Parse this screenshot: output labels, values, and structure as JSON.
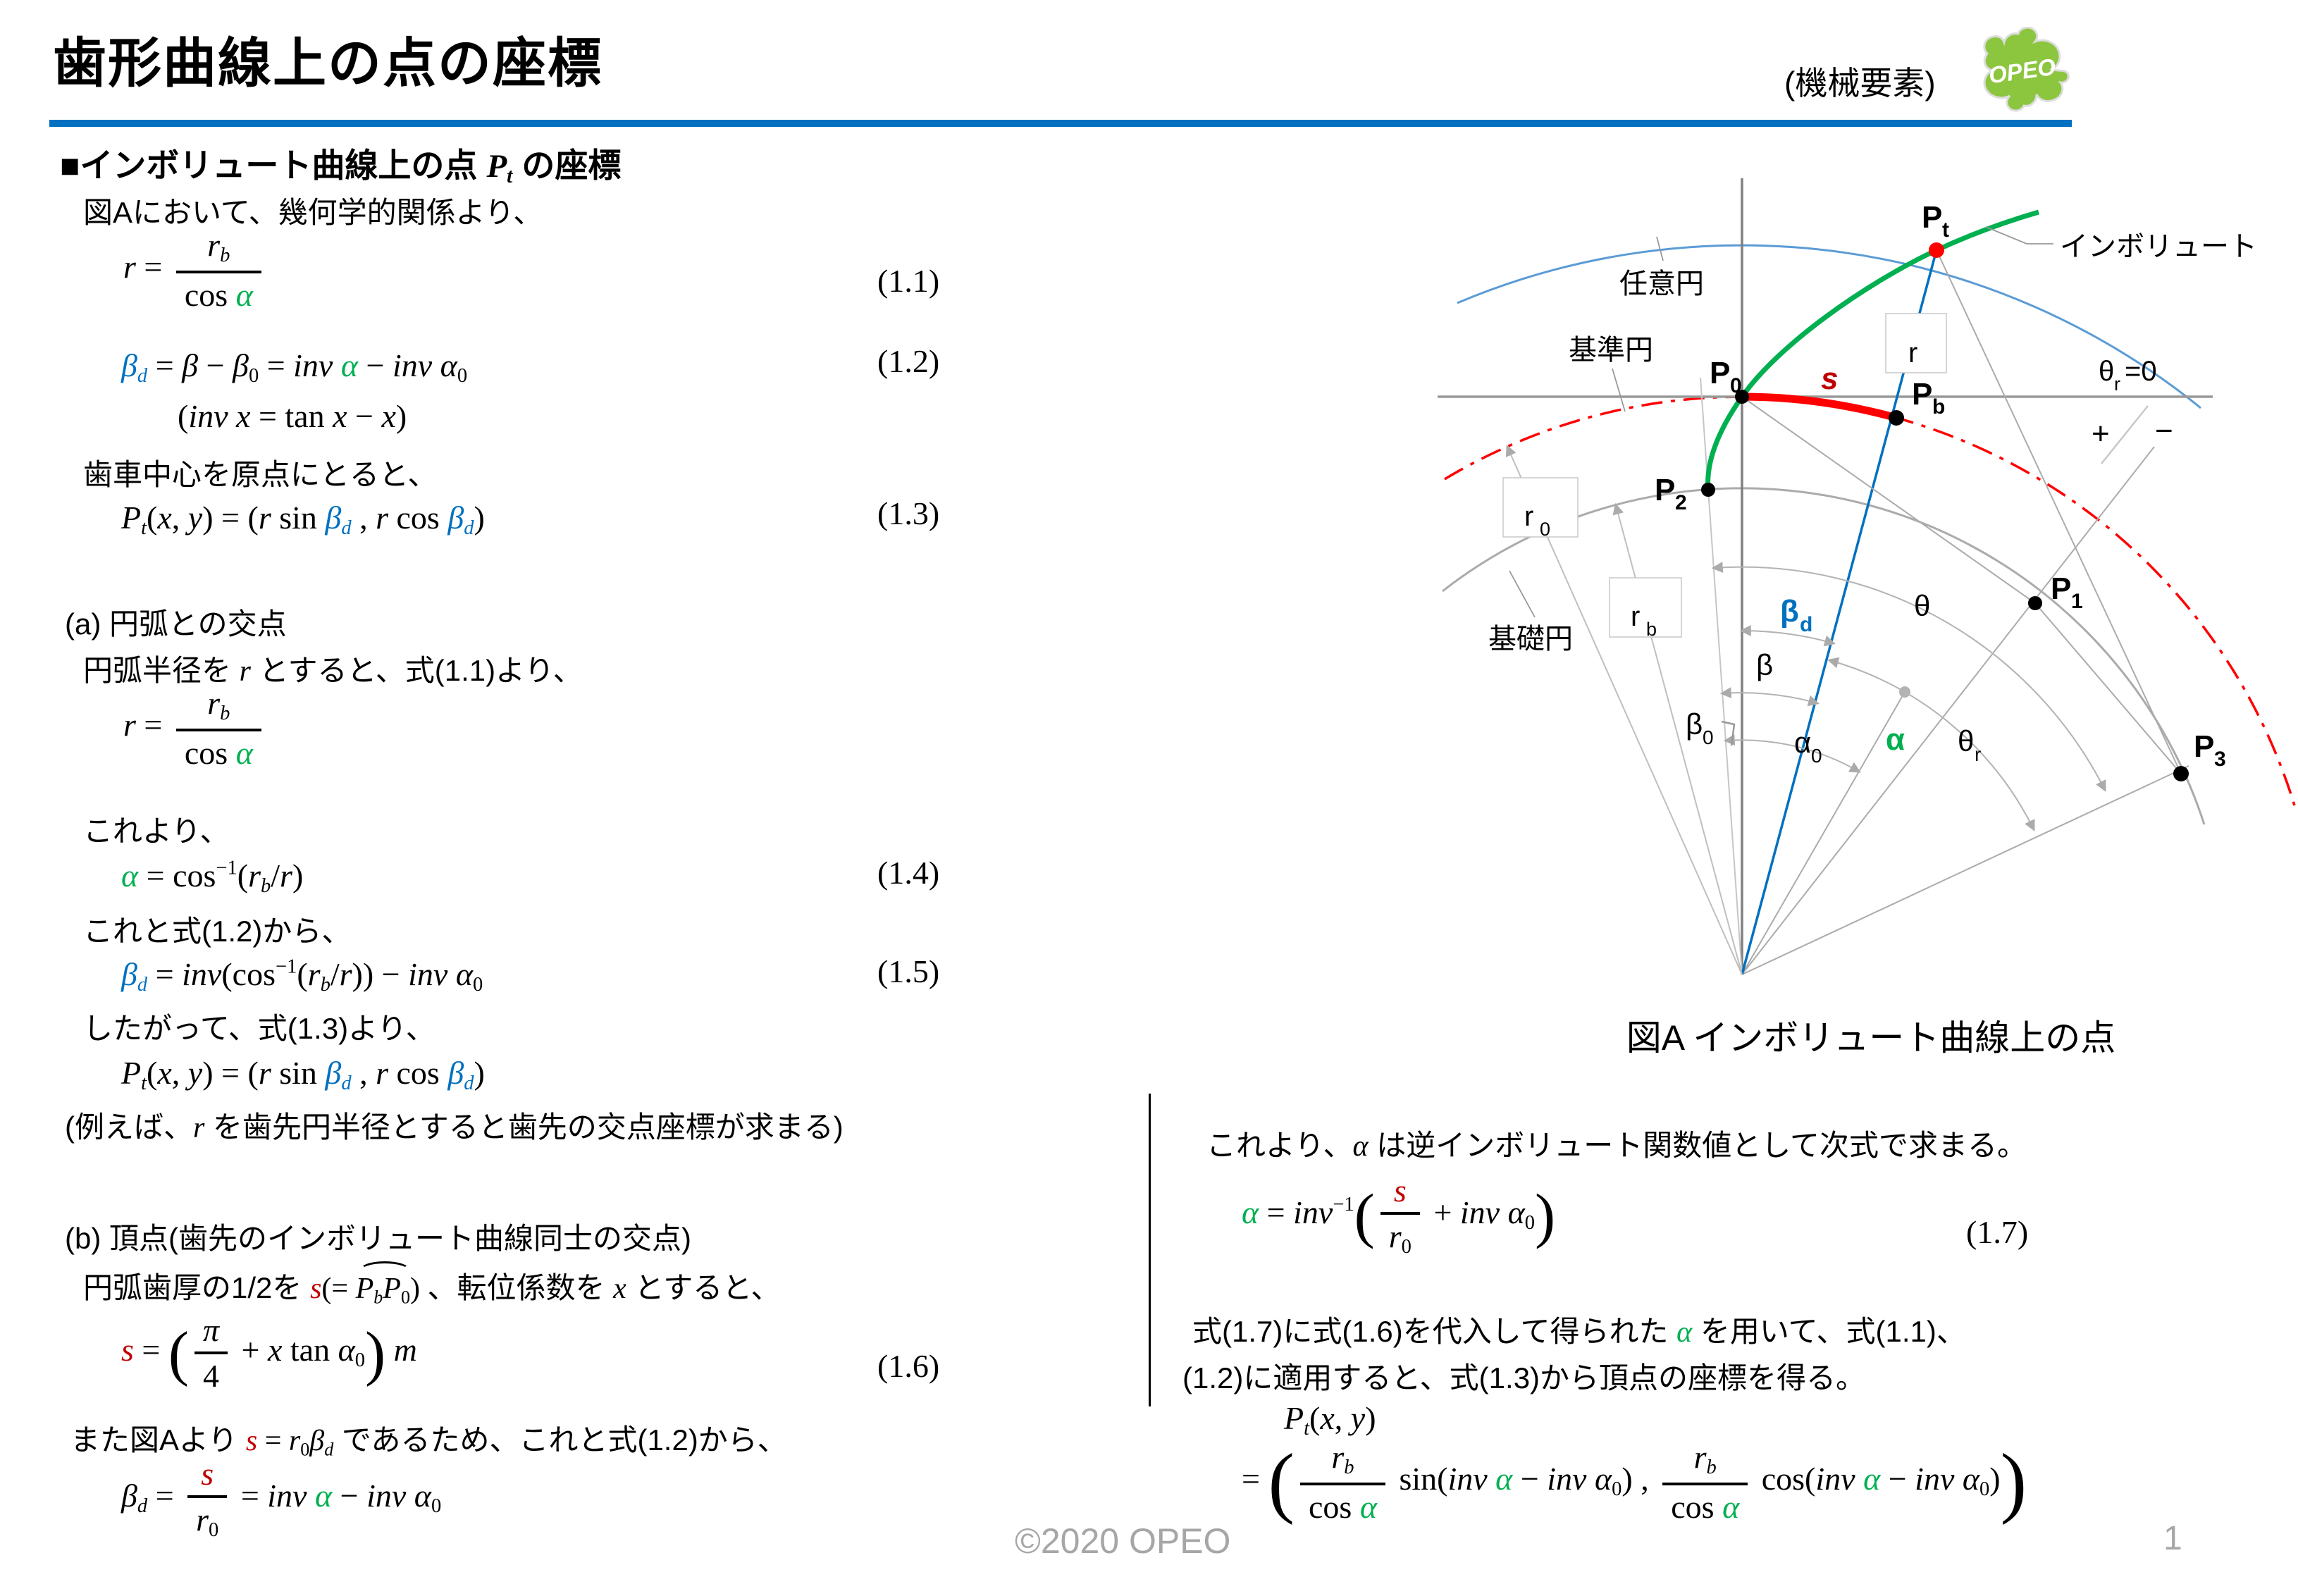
{
  "header": {
    "title": "歯形曲線上の点の座標",
    "category": "(機械要素)",
    "logo_text": "OPEO"
  },
  "footer": {
    "copyright": "©2020 OPEO",
    "page": "1"
  },
  "eqnums": {
    "e11": "(1.1)",
    "e12": "(1.2)",
    "e13": "(1.3)",
    "e14": "(1.4)",
    "e15": "(1.5)",
    "e16": "(1.6)",
    "e17": "(1.7)"
  },
  "colors": {
    "green": "#00B050",
    "blue": "#0070C0",
    "dark_red": "#C00000",
    "bright_red": "#FF0000",
    "light_blue": "#5B9BD5",
    "gray": "#A6A6A6"
  },
  "lines": {
    "heading": [
      {
        "t": "■インボリュート曲線上の点 ",
        "c": "jp"
      },
      {
        "t": "P",
        "c": "i"
      },
      {
        "t": "t",
        "c": "sub"
      },
      {
        "t": " の座標",
        "c": "jp"
      }
    ],
    "intro": [
      {
        "t": "図Aにおいて、幾何学的関係より、",
        "c": "jp"
      }
    ],
    "eq11": [
      {
        "t": "r",
        "c": "i"
      },
      {
        "t": " = ",
        "c": "u"
      },
      {
        "frac": {
          "n": [
            {
              "t": "r",
              "c": "i"
            },
            {
              "t": "b",
              "c": "sub"
            }
          ],
          "d": [
            {
              "t": "cos ",
              "c": "u"
            },
            {
              "t": "α",
              "c": "i g"
            }
          ]
        }
      }
    ],
    "eq12": [
      {
        "t": "β",
        "c": "i b"
      },
      {
        "t": "d",
        "c": "sub b"
      },
      {
        "t": " = ",
        "c": "u"
      },
      {
        "t": "β",
        "c": "i"
      },
      {
        "t": " − ",
        "c": "u"
      },
      {
        "t": "β",
        "c": "i"
      },
      {
        "t": "0",
        "c": "subu"
      },
      {
        "t": " = ",
        "c": "u"
      },
      {
        "t": "inv ",
        "c": "i"
      },
      {
        "t": "α",
        "c": "i g"
      },
      {
        "t": " − ",
        "c": "u"
      },
      {
        "t": "inv ",
        "c": "i"
      },
      {
        "t": "α",
        "c": "i"
      },
      {
        "t": "0",
        "c": "subu"
      }
    ],
    "invdef": [
      {
        "t": "(",
        "c": "u"
      },
      {
        "t": "inv x",
        "c": "i"
      },
      {
        "t": " = tan ",
        "c": "u"
      },
      {
        "t": "x",
        "c": "i"
      },
      {
        "t": " − ",
        "c": "u"
      },
      {
        "t": "x",
        "c": "i"
      },
      {
        "t": ")",
        "c": "u"
      }
    ],
    "center_note": [
      {
        "t": "歯車中心を原点にとると、",
        "c": "jp"
      }
    ],
    "eq13": [
      {
        "t": "P",
        "c": "i"
      },
      {
        "t": "t",
        "c": "sub"
      },
      {
        "t": "(",
        "c": "u"
      },
      {
        "t": "x",
        "c": "i"
      },
      {
        "t": ", ",
        "c": "u"
      },
      {
        "t": "y",
        "c": "i"
      },
      {
        "t": ") = (",
        "c": "u"
      },
      {
        "t": "r",
        "c": "i"
      },
      {
        "t": " sin ",
        "c": "u"
      },
      {
        "t": "β",
        "c": "i b"
      },
      {
        "t": "d",
        "c": "sub b"
      },
      {
        "t": " ,   ",
        "c": "u"
      },
      {
        "t": "r",
        "c": "i"
      },
      {
        "t": " cos ",
        "c": "u"
      },
      {
        "t": "β",
        "c": "i b"
      },
      {
        "t": "d",
        "c": "sub b"
      },
      {
        "t": ")",
        "c": "u"
      }
    ],
    "sec_a": [
      {
        "t": "(a) 円弧との交点",
        "c": "jp"
      }
    ],
    "a1": [
      {
        "t": "円弧半径を ",
        "c": "jp"
      },
      {
        "t": "r",
        "c": "i"
      },
      {
        "t": " とすると、式(1.1)より、",
        "c": "jp"
      }
    ],
    "eq_r2": [
      {
        "t": "r",
        "c": "i"
      },
      {
        "t": " = ",
        "c": "u"
      },
      {
        "frac": {
          "n": [
            {
              "t": "r",
              "c": "i"
            },
            {
              "t": "b",
              "c": "sub"
            }
          ],
          "d": [
            {
              "t": "cos ",
              "c": "u"
            },
            {
              "t": "α",
              "c": "i g"
            }
          ]
        }
      }
    ],
    "korekara": [
      {
        "t": "これより、",
        "c": "jp"
      }
    ],
    "eq14": [
      {
        "t": "α",
        "c": "i g"
      },
      {
        "t": " = cos",
        "c": "u"
      },
      {
        "t": "−1",
        "c": "sup"
      },
      {
        "t": "(",
        "c": "u"
      },
      {
        "t": "r",
        "c": "i"
      },
      {
        "t": "b",
        "c": "sub"
      },
      {
        "t": "/",
        "c": "u"
      },
      {
        "t": "r",
        "c": "i"
      },
      {
        "t": ")",
        "c": "u"
      }
    ],
    "koreto": [
      {
        "t": "これと式(1.2)から、",
        "c": "jp"
      }
    ],
    "eq15": [
      {
        "t": "β",
        "c": "i b"
      },
      {
        "t": "d",
        "c": "sub b"
      },
      {
        "t": " = ",
        "c": "u"
      },
      {
        "t": "inv",
        "c": "i"
      },
      {
        "t": "(cos",
        "c": "u"
      },
      {
        "t": "−1",
        "c": "sup"
      },
      {
        "t": "(",
        "c": "u"
      },
      {
        "t": "r",
        "c": "i"
      },
      {
        "t": "b",
        "c": "sub"
      },
      {
        "t": "/",
        "c": "u"
      },
      {
        "t": "r",
        "c": "i"
      },
      {
        "t": ")) − ",
        "c": "u"
      },
      {
        "t": "inv ",
        "c": "i"
      },
      {
        "t": "α",
        "c": "i"
      },
      {
        "t": "0",
        "c": "subu"
      }
    ],
    "shitagatte": [
      {
        "t": "したがって、式(1.3)より、",
        "c": "jp"
      }
    ],
    "eq13b": [
      {
        "t": "P",
        "c": "i"
      },
      {
        "t": "t",
        "c": "sub"
      },
      {
        "t": "(",
        "c": "u"
      },
      {
        "t": "x",
        "c": "i"
      },
      {
        "t": ", ",
        "c": "u"
      },
      {
        "t": "y",
        "c": "i"
      },
      {
        "t": ") = (",
        "c": "u"
      },
      {
        "t": "r",
        "c": "i"
      },
      {
        "t": " sin ",
        "c": "u"
      },
      {
        "t": "β",
        "c": "i b"
      },
      {
        "t": "d",
        "c": "sub b"
      },
      {
        "t": " ,   ",
        "c": "u"
      },
      {
        "t": "r",
        "c": "i"
      },
      {
        "t": " cos ",
        "c": "u"
      },
      {
        "t": "β",
        "c": "i b"
      },
      {
        "t": "d",
        "c": "sub b"
      },
      {
        "t": ")",
        "c": "u"
      }
    ],
    "example": [
      {
        "t": "(例えば、",
        "c": "jp"
      },
      {
        "t": "r",
        "c": "i"
      },
      {
        "t": " を歯先円半径とすると歯先の交点座標が求まる)",
        "c": "jp"
      }
    ],
    "sec_b": [
      {
        "t": "(b) 頂点(歯先のインボリュート曲線同士の交点)",
        "c": "jp"
      }
    ],
    "b1": [
      {
        "t": "円弧歯厚の1/2を ",
        "c": "jp"
      },
      {
        "t": "s",
        "c": "i r"
      },
      {
        "t": "(= ",
        "c": "u"
      },
      {
        "g": [
          {
            "t": "P",
            "c": "i"
          },
          {
            "t": "b",
            "c": "sub"
          },
          {
            "t": "P",
            "c": "i"
          },
          {
            "t": "0",
            "c": "subu"
          }
        ],
        "c": "overarc"
      },
      {
        "t": ") ",
        "c": "u"
      },
      {
        "t": "、転位係数を ",
        "c": "jp"
      },
      {
        "t": "x",
        "c": "i"
      },
      {
        "t": " とすると、",
        "c": "jp"
      }
    ],
    "eq16": [
      {
        "t": "s",
        "c": "i r"
      },
      {
        "t": " = ",
        "c": "u"
      },
      {
        "t": "(",
        "c": "bp"
      },
      {
        "frac": {
          "n": [
            {
              "t": "π",
              "c": "i"
            }
          ],
          "d": [
            {
              "t": "4",
              "c": "u"
            }
          ]
        }
      },
      {
        "t": " + ",
        "c": "u"
      },
      {
        "t": "x",
        "c": "i"
      },
      {
        "t": " tan ",
        "c": "u"
      },
      {
        "t": "α",
        "c": "i"
      },
      {
        "t": "0",
        "c": "subu"
      },
      {
        "t": ")",
        "c": "bp"
      },
      {
        "t": " m",
        "c": "i"
      }
    ],
    "b2": [
      {
        "t": "また図Aより ",
        "c": "jp"
      },
      {
        "t": "s",
        "c": "i r"
      },
      {
        "t": " = ",
        "c": "u"
      },
      {
        "t": "r",
        "c": "i"
      },
      {
        "t": "0",
        "c": "subu"
      },
      {
        "t": "β",
        "c": "i"
      },
      {
        "t": "d",
        "c": "sub"
      },
      {
        "t": " であるため、これと式(1.2)から、",
        "c": "jp"
      }
    ],
    "eq_bd": [
      {
        "t": "β",
        "c": "i"
      },
      {
        "t": "d",
        "c": "sub"
      },
      {
        "t": " = ",
        "c": "u"
      },
      {
        "frac": {
          "n": [
            {
              "t": "s",
              "c": "i r"
            }
          ],
          "d": [
            {
              "t": "r",
              "c": "i"
            },
            {
              "t": "0",
              "c": "subu"
            }
          ]
        }
      },
      {
        "t": " = ",
        "c": "u"
      },
      {
        "t": "inv ",
        "c": "i"
      },
      {
        "t": "α",
        "c": "i g"
      },
      {
        "t": " − ",
        "c": "u"
      },
      {
        "t": "inv ",
        "c": "i"
      },
      {
        "t": "α",
        "c": "i"
      },
      {
        "t": "0",
        "c": "subu"
      }
    ],
    "r1": [
      {
        "t": "これより、",
        "c": "jp"
      },
      {
        "t": "α",
        "c": "i"
      },
      {
        "t": " は逆インボリュート関数値として次式で求まる。",
        "c": "jp"
      }
    ],
    "eq17": [
      {
        "t": "α",
        "c": "i g"
      },
      {
        "t": " = ",
        "c": "u"
      },
      {
        "t": "inv",
        "c": "i"
      },
      {
        "t": "−1",
        "c": "sup"
      },
      {
        "t": "(",
        "c": "bp"
      },
      {
        "frac": {
          "n": [
            {
              "t": "s",
              "c": "i r"
            }
          ],
          "d": [
            {
              "t": "r",
              "c": "i"
            },
            {
              "t": "0",
              "c": "subu"
            }
          ]
        }
      },
      {
        "t": " + ",
        "c": "u"
      },
      {
        "t": "inv ",
        "c": "i"
      },
      {
        "t": "α",
        "c": "i"
      },
      {
        "t": "0",
        "c": "subu"
      },
      {
        "t": ")",
        "c": "bp"
      }
    ],
    "r2": [
      {
        "t": "式(1.7)に式(1.6)を代入して得られた ",
        "c": "jp"
      },
      {
        "t": "α",
        "c": "i g"
      },
      {
        "t": " を用いて、式(1.1)、",
        "c": "jp"
      }
    ],
    "r3": [
      {
        "t": "(1.2)に適用すると、式(1.3)から頂点の座標を得る。",
        "c": "jp"
      }
    ],
    "pt2a": [
      {
        "t": "P",
        "c": "i"
      },
      {
        "t": "t",
        "c": "sub"
      },
      {
        "t": "(",
        "c": "u"
      },
      {
        "t": "x",
        "c": "i"
      },
      {
        "t": ", ",
        "c": "u"
      },
      {
        "t": "y",
        "c": "i"
      },
      {
        "t": ")",
        "c": "u"
      }
    ],
    "pt2b": [
      {
        "t": "= ",
        "c": "u"
      },
      {
        "t": "(",
        "c": "bp2"
      },
      {
        "frac": {
          "n": [
            {
              "t": "r",
              "c": "i"
            },
            {
              "t": "b",
              "c": "sub"
            }
          ],
          "d": [
            {
              "t": "cos ",
              "c": "u"
            },
            {
              "t": "α",
              "c": "i g"
            }
          ]
        }
      },
      {
        "t": " sin(",
        "c": "u"
      },
      {
        "t": "inv ",
        "c": "i"
      },
      {
        "t": "α",
        "c": "i g"
      },
      {
        "t": " − ",
        "c": "u"
      },
      {
        "t": "inv ",
        "c": "i"
      },
      {
        "t": "α",
        "c": "i"
      },
      {
        "t": "0",
        "c": "subu"
      },
      {
        "t": ") ,  ",
        "c": "u"
      },
      {
        "frac": {
          "n": [
            {
              "t": "r",
              "c": "i"
            },
            {
              "t": "b",
              "c": "sub"
            }
          ],
          "d": [
            {
              "t": "cos ",
              "c": "u"
            },
            {
              "t": "α",
              "c": "i g"
            }
          ]
        }
      },
      {
        "t": " cos(",
        "c": "u"
      },
      {
        "t": "inv ",
        "c": "i"
      },
      {
        "t": "α",
        "c": "i g"
      },
      {
        "t": " − ",
        "c": "u"
      },
      {
        "t": "inv ",
        "c": "i"
      },
      {
        "t": "α",
        "c": "i"
      },
      {
        "t": "0",
        "c": "subu"
      },
      {
        "t": ")",
        "c": "u"
      },
      {
        "t": ")",
        "c": "bp2"
      }
    ]
  },
  "diagram": {
    "caption": "図A インボリュート曲線上の点",
    "label_arbitrary_circle": "任意円",
    "label_reference_circle": "基準円",
    "label_base_circle": "基礎円",
    "label_involute": "インボリュート",
    "theta_r0_main": "θ",
    "theta_r0_sub": "r",
    "theta_r0_tail": "=0",
    "plus": "+",
    "minus": "−",
    "s": "s",
    "r": "r",
    "r0_main": "r",
    "r0_sub": "0",
    "rb_main": "r",
    "rb_sub": "b",
    "Pt_main": "P",
    "Pt_sub": "t",
    "P0_main": "P",
    "P0_sub": "0",
    "Pb_main": "P",
    "Pb_sub": "b",
    "P1_main": "P",
    "P1_sub": "1",
    "P2_main": "P",
    "P2_sub": "2",
    "P3_main": "P",
    "P3_sub": "3",
    "beta_d_main": "β",
    "beta_d_sub": "d",
    "beta": "β",
    "beta0_main": "β",
    "beta0_sub": "0",
    "alpha0_main": "α",
    "alpha0_sub": "0",
    "alpha": "α",
    "theta": "θ",
    "theta_r_main": "θ",
    "theta_r_sub": "r"
  }
}
